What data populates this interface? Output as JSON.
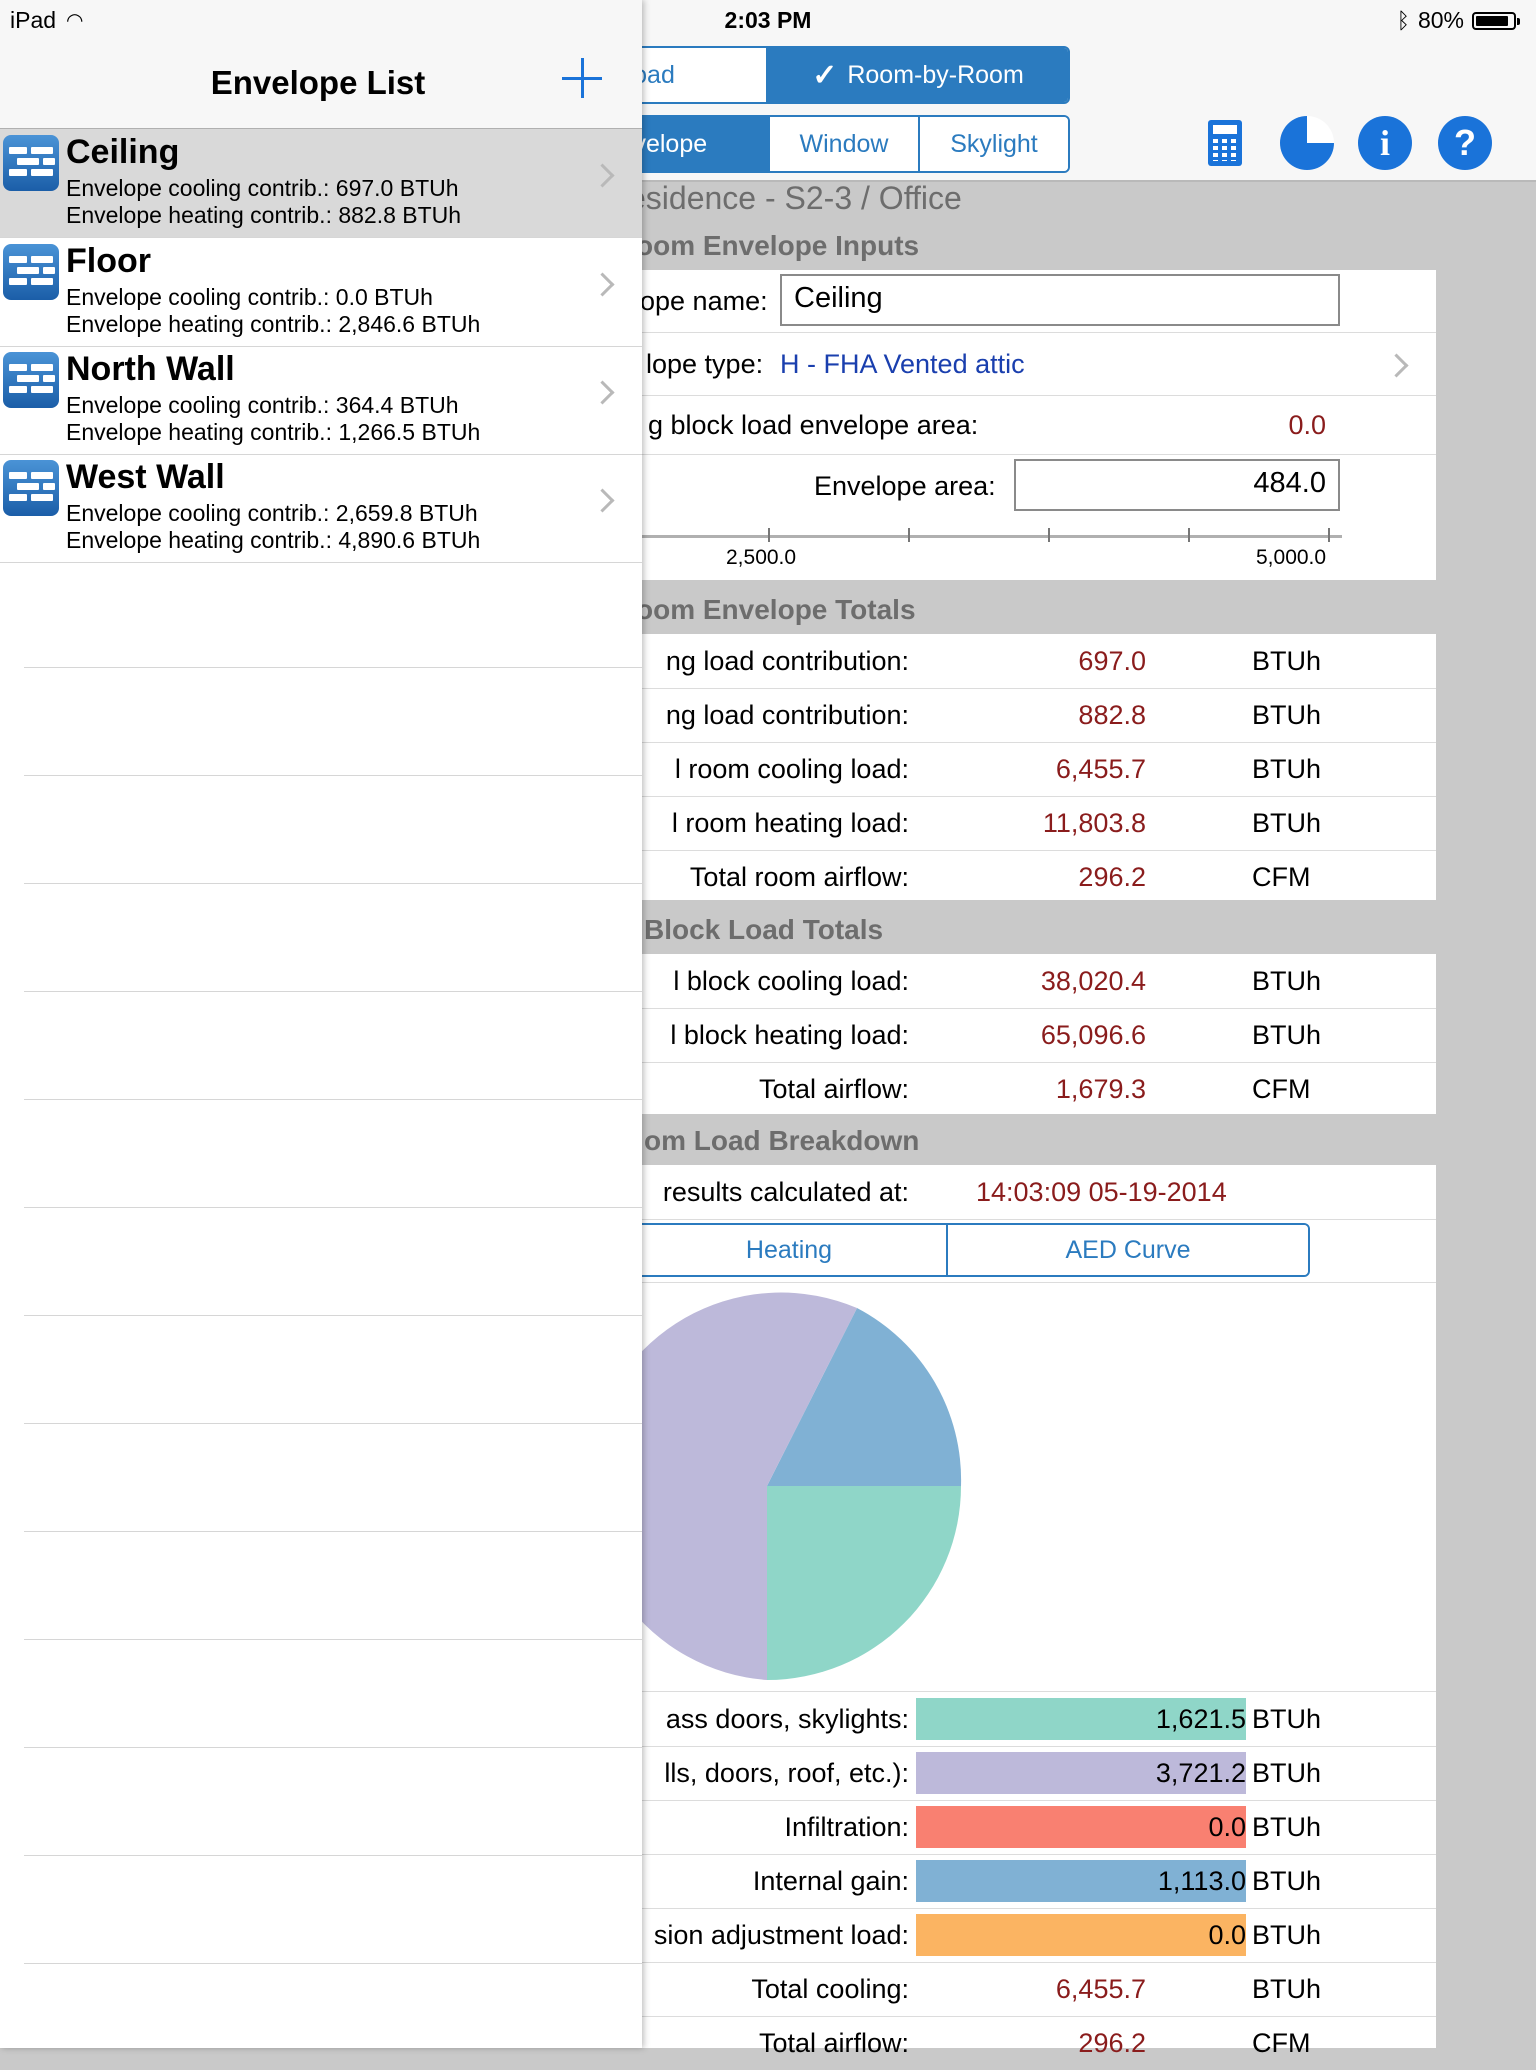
{
  "status": {
    "device": "iPad",
    "time": "2:03 PM",
    "battery": "80%"
  },
  "drawer": {
    "title": "Envelope List",
    "items": [
      {
        "name": "Ceiling",
        "cooling": "Envelope cooling contrib.: 697.0 BTUh",
        "heating": "Envelope heating contrib.: 882.8 BTUh"
      },
      {
        "name": "Floor",
        "cooling": "Envelope cooling contrib.: 0.0 BTUh",
        "heating": "Envelope heating contrib.: 2,846.6 BTUh"
      },
      {
        "name": "North Wall",
        "cooling": "Envelope cooling contrib.: 364.4 BTUh",
        "heating": "Envelope heating contrib.: 1,266.5 BTUh"
      },
      {
        "name": "West Wall",
        "cooling": "Envelope cooling contrib.: 2,659.8 BTUh",
        "heating": "Envelope heating contrib.: 4,890.6 BTUh"
      }
    ]
  },
  "toolbar": {
    "mode_tabs": [
      "oad",
      "Room-by-Room"
    ],
    "mode_check": "✓",
    "sub_tabs": [
      "Envelope",
      "Window",
      "Skylight"
    ]
  },
  "main": {
    "page_title": "esidence - S2-3 / Office",
    "inputs_header": "oom Envelope Inputs",
    "envelope_name_label": "ope name:",
    "envelope_name_value": "Ceiling",
    "envelope_type_label": "lope type:",
    "envelope_type_value": "H - FHA Vented attic",
    "block_area_label": "g block load envelope area:",
    "block_area_value": "0.0",
    "envelope_area_label": "Envelope area:",
    "envelope_area_value": "484.0",
    "slider_min_label": "2,500.0",
    "slider_max_label": "5,000.0",
    "totals_header": "oom Envelope Totals",
    "totals": [
      {
        "label": "ng load contribution:",
        "value": "697.0",
        "unit": "BTUh"
      },
      {
        "label": "ng load contribution:",
        "value": "882.8",
        "unit": "BTUh"
      },
      {
        "label": "l room cooling load:",
        "value": "6,455.7",
        "unit": "BTUh"
      },
      {
        "label": "l room heating load:",
        "value": "11,803.8",
        "unit": "BTUh"
      },
      {
        "label": "Total room airflow:",
        "value": "296.2",
        "unit": "CFM"
      }
    ],
    "block_header": "Block Load Totals",
    "block": [
      {
        "label": "l block cooling load:",
        "value": "38,020.4",
        "unit": "BTUh"
      },
      {
        "label": "l block heating load:",
        "value": "65,096.6",
        "unit": "BTUh"
      },
      {
        "label": "Total airflow:",
        "value": "1,679.3",
        "unit": "CFM"
      }
    ],
    "breakdown_header": "om Load Breakdown",
    "calc_label": "results calculated at:",
    "calc_value": "14:03:09 05-19-2014",
    "breakdown_tabs": [
      "Heating",
      "AED Curve"
    ],
    "bars": [
      {
        "label": "ass doors, skylights:",
        "value": "1,621.5",
        "unit": "BTUh",
        "color": "#8fd6c8"
      },
      {
        "label": "lls, doors, roof, etc.):",
        "value": "3,721.2",
        "unit": "BTUh",
        "color": "#bdb9da"
      },
      {
        "label": "Infiltration:",
        "value": "0.0",
        "unit": "BTUh",
        "color": "#f98071"
      },
      {
        "label": "Internal gain:",
        "value": "1,113.0",
        "unit": "BTUh",
        "color": "#80b1d4"
      },
      {
        "label": "sion adjustment load:",
        "value": "0.0",
        "unit": "BTUh",
        "color": "#fbb462"
      }
    ],
    "total_cooling": {
      "label": "Total cooling:",
      "value": "6,455.7",
      "unit": "BTUh"
    },
    "total_airflow": {
      "label": "Total airflow:",
      "value": "296.2",
      "unit": "CFM"
    }
  },
  "colors": {
    "accent": "#2b7bbf",
    "value_text": "#8a1c1c",
    "type_link": "#1a3fae"
  }
}
